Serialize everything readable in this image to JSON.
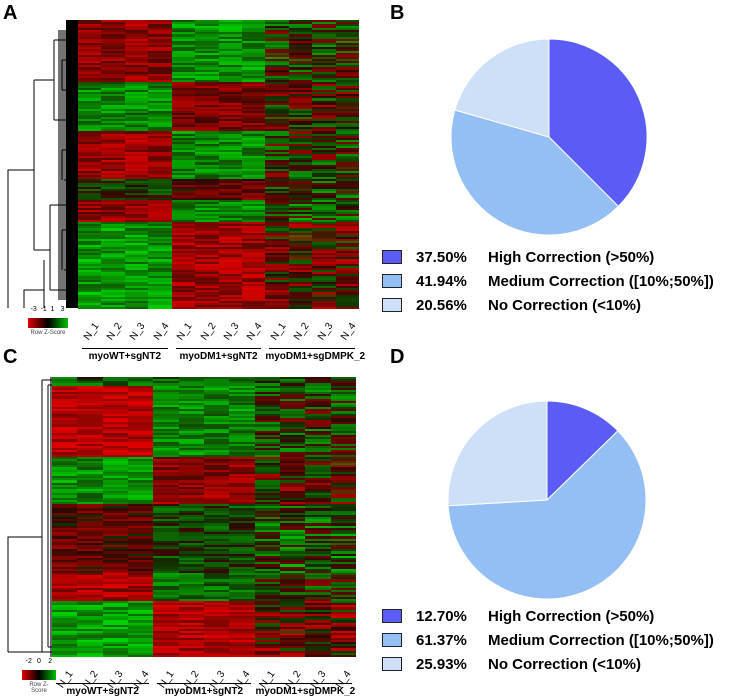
{
  "panels": {
    "A": {
      "letter": "A",
      "lanes": [
        "N_1",
        "N_2",
        "N_3",
        "N_4",
        "N_1",
        "N_2",
        "N_3",
        "N_4",
        "N_1",
        "N_2",
        "N_3",
        "N_4"
      ],
      "groups": [
        "myoWT+sgNT2",
        "myoDM1+sgNT2",
        "myoDM1+sgDMPK_2"
      ],
      "scale": {
        "ticks": [
          "-3",
          "-1",
          "1",
          "3"
        ],
        "caption": "Row Z-Score",
        "colors": [
          "#e00000",
          "#000000",
          "#00c000"
        ]
      }
    },
    "C": {
      "letter": "C",
      "lanes": [
        "N_1",
        "N_2",
        "N_3",
        "N_4",
        "N_1",
        "N_2",
        "N_3",
        "N_4",
        "N_1",
        "N_2",
        "N_3",
        "N_4"
      ],
      "groups": [
        "myoWT+sgNT2",
        "myoDM1+sgNT2",
        "myoDM1+sgDMPK_2"
      ],
      "scale": {
        "ticks": [
          "-2",
          "0",
          "2"
        ],
        "caption": "Row Z-Score",
        "colors": [
          "#e00000",
          "#000000",
          "#00c000"
        ]
      }
    }
  },
  "chart_data": [
    {
      "type": "pie",
      "panel": "B",
      "letter": "B",
      "slices": [
        {
          "value": 37.5,
          "pct_label": "37.50%",
          "label": "High Correction (>50%)",
          "color": "#5b5bf5"
        },
        {
          "value": 41.94,
          "pct_label": "41.94%",
          "label": "Medium Correction ([10%;50%])",
          "color": "#93bff5"
        },
        {
          "value": 20.56,
          "pct_label": "20.56%",
          "label": "No Correction (<10%)",
          "color": "#cde0f7"
        }
      ]
    },
    {
      "type": "pie",
      "panel": "D",
      "letter": "D",
      "slices": [
        {
          "value": 12.7,
          "pct_label": "12.70%",
          "label": "High Correction (>50%)",
          "color": "#5b5bf5"
        },
        {
          "value": 61.37,
          "pct_label": "61.37%",
          "label": "Medium Correction ([10%;50%])",
          "color": "#93bff5"
        },
        {
          "value": 25.93,
          "pct_label": "25.93%",
          "label": "No Correction (<10%)",
          "color": "#cde0f7"
        }
      ]
    }
  ]
}
